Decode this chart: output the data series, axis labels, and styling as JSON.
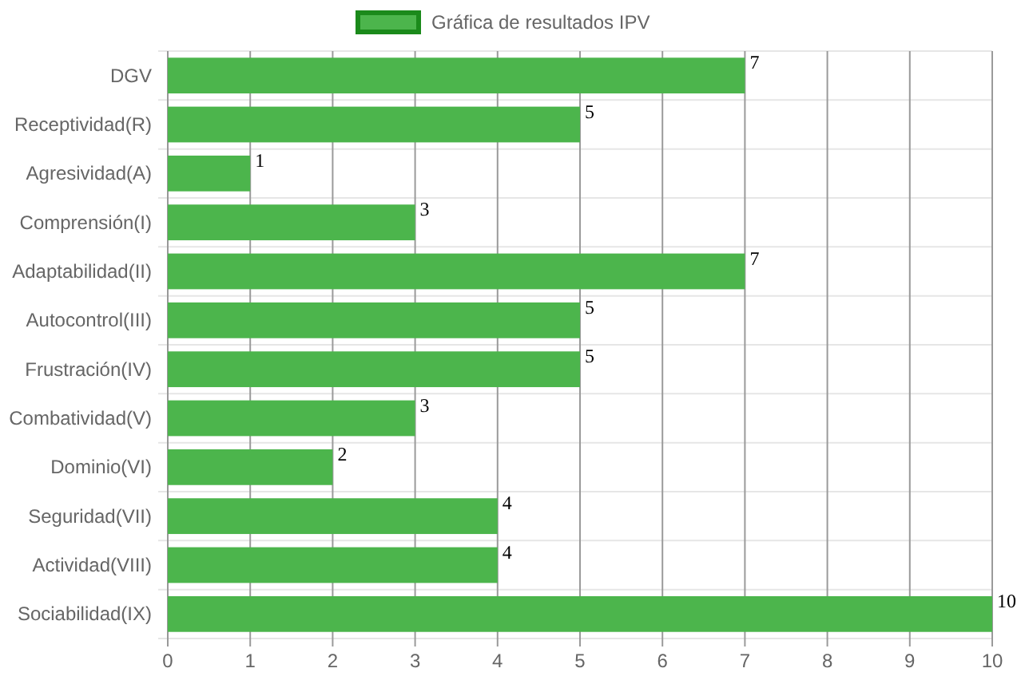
{
  "chart_data": {
    "type": "bar",
    "orientation": "horizontal",
    "categories": [
      "DGV",
      "Receptividad(R)",
      "Agresividad(A)",
      "Comprensión(I)",
      "Adaptabilidad(II)",
      "Autocontrol(III)",
      "Frustración(IV)",
      "Combatividad(V)",
      "Dominio(VI)",
      "Seguridad(VII)",
      "Actividad(VIII)",
      "Sociabilidad(IX)"
    ],
    "series": [
      {
        "name": "Gráfica de resultados IPV",
        "color": "#4cb54c",
        "values": [
          7,
          5,
          1,
          3,
          7,
          5,
          5,
          3,
          2,
          4,
          4,
          10
        ]
      }
    ],
    "xlim": [
      0,
      10
    ],
    "xticks": [
      0,
      1,
      2,
      3,
      4,
      5,
      6,
      7,
      8,
      9,
      10
    ],
    "grid": true,
    "legend": "top",
    "data_labels": true
  }
}
